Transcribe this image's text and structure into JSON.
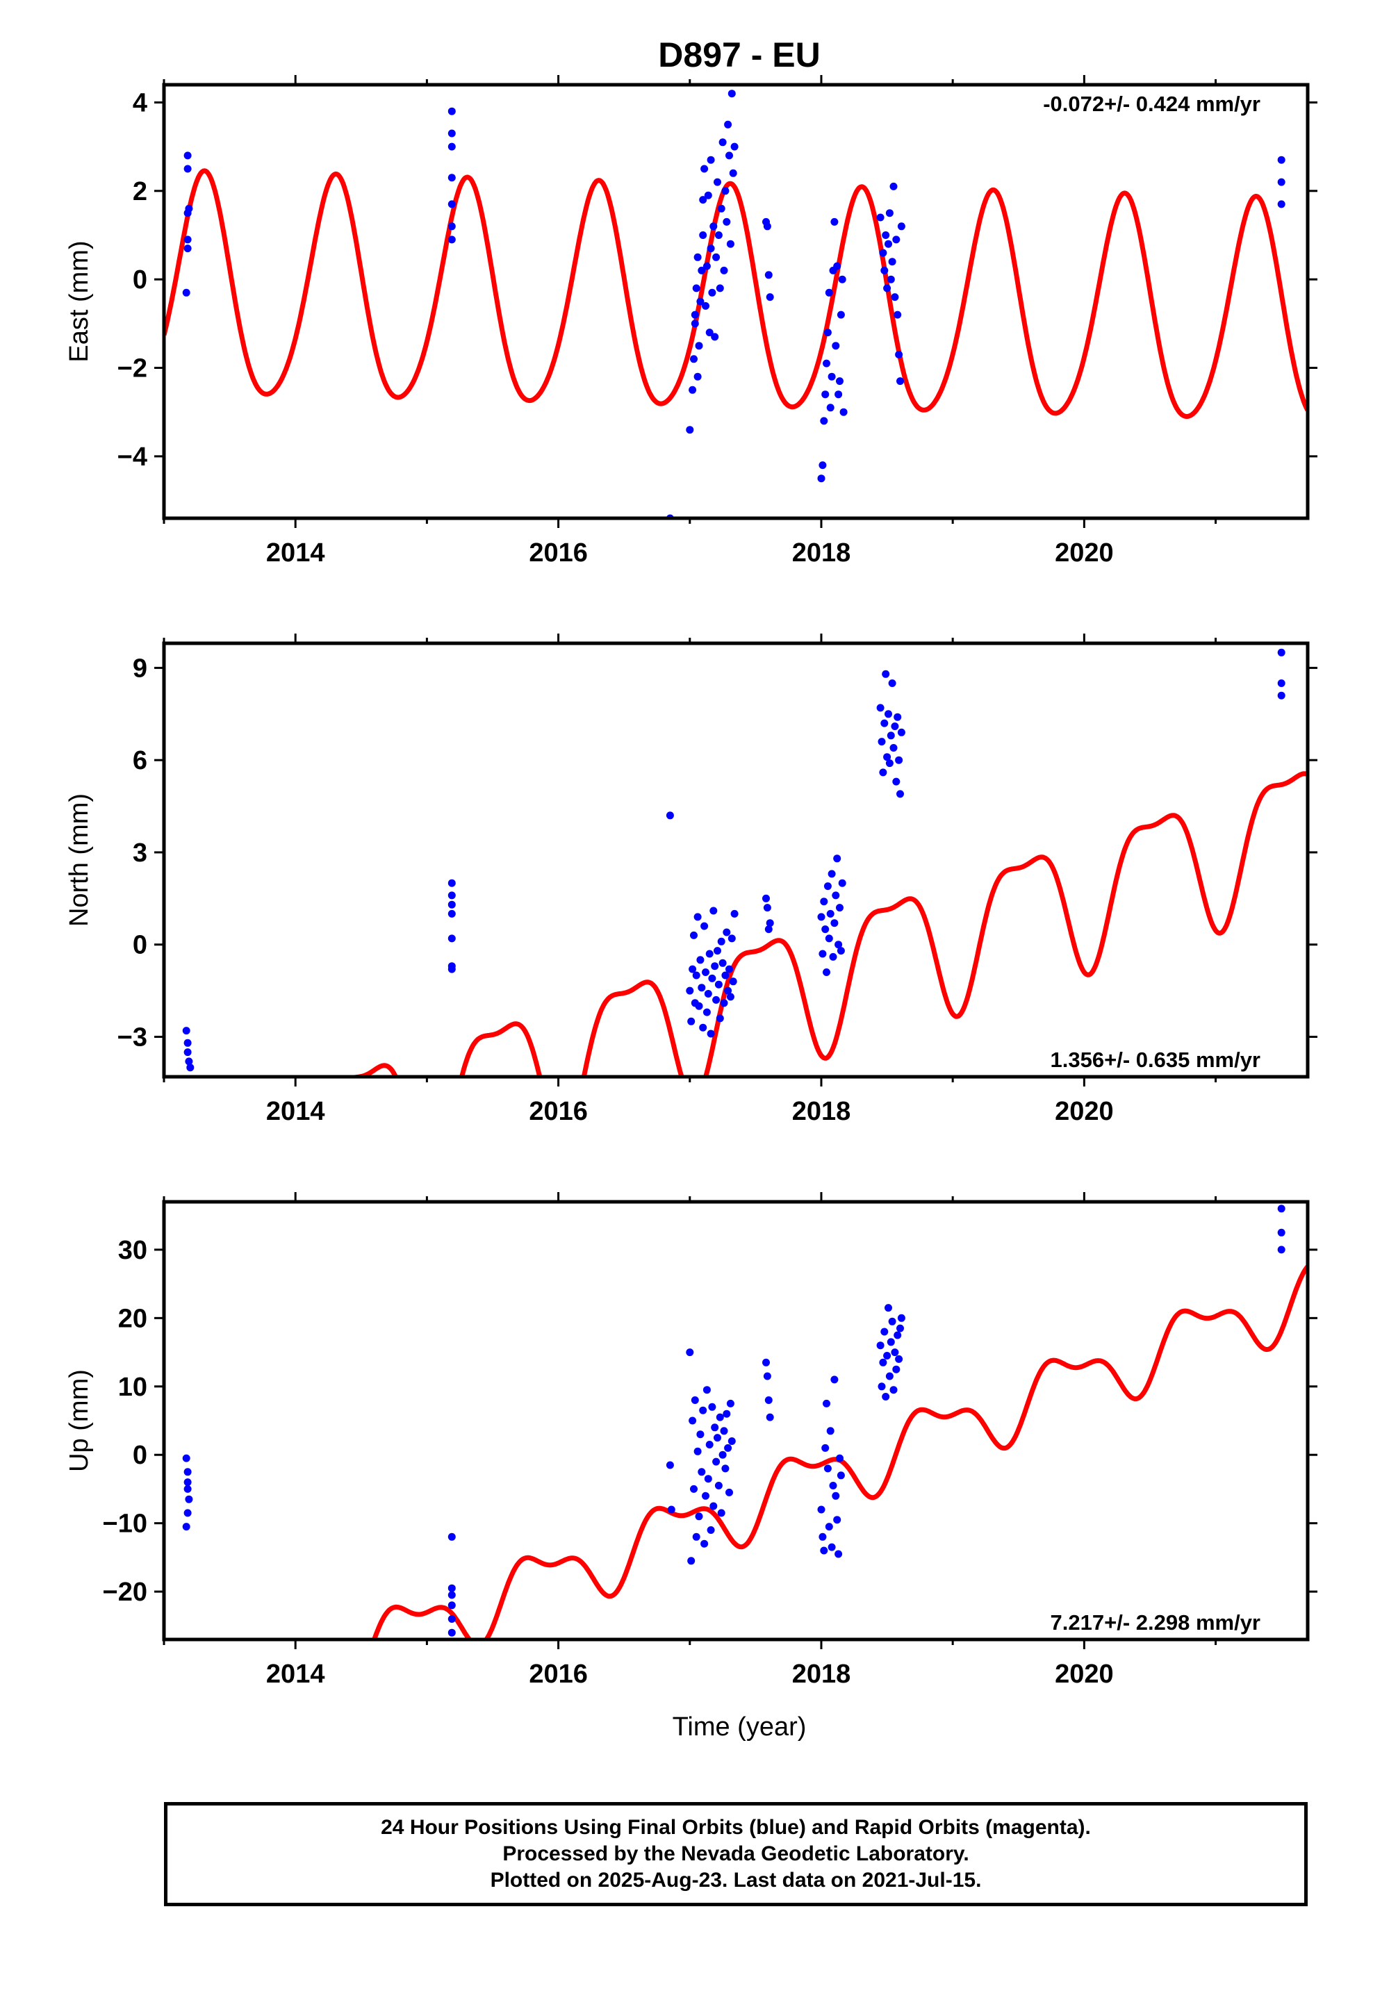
{
  "title": "D897 - EU",
  "xlabel": "Time (year)",
  "caption": [
    "24 Hour Positions Using Final Orbits (blue) and Rapid Orbits (magenta).",
    "Processed by the Nevada Geodetic Laboratory.",
    "Plotted on 2025-Aug-23. Last data on 2021-Jul-15."
  ],
  "colors": {
    "data_points": "#0000ff",
    "model_curve": "#ff0000",
    "frame": "#000000"
  },
  "chart_data": [
    {
      "type": "scatter",
      "ylabel": "East (mm)",
      "rate_label": "-0.072+/- 0.424 mm/yr",
      "rate_position": "top-right",
      "xlim": [
        2013.0,
        2021.7
      ],
      "ylim": [
        -5.4,
        4.4
      ],
      "xticks": [
        2014,
        2016,
        2018,
        2020
      ],
      "xtick_labels": [
        "2014",
        "2016",
        "2018",
        "2020"
      ],
      "yticks": [
        -4,
        -2,
        0,
        2,
        4
      ],
      "ytick_labels": [
        "−4",
        "−2",
        "0",
        "2",
        "4"
      ],
      "model": {
        "offset": -0.6,
        "rate": -0.072,
        "a1": 2.5,
        "phase1": 0.05,
        "a2": 0.3,
        "phase2": 0.2
      },
      "points": [
        [
          2013.18,
          2.8
        ],
        [
          2013.18,
          2.5
        ],
        [
          2013.18,
          1.5
        ],
        [
          2013.18,
          0.9
        ],
        [
          2013.18,
          0.7
        ],
        [
          2013.17,
          -0.3
        ],
        [
          2013.19,
          1.6
        ],
        [
          2015.19,
          3.8
        ],
        [
          2015.19,
          3.3
        ],
        [
          2015.19,
          3.0
        ],
        [
          2015.19,
          2.3
        ],
        [
          2015.19,
          1.7
        ],
        [
          2015.19,
          1.2
        ],
        [
          2015.19,
          0.9
        ],
        [
          2016.85,
          -5.4
        ],
        [
          2017.0,
          -3.4
        ],
        [
          2017.02,
          -2.5
        ],
        [
          2017.03,
          -1.8
        ],
        [
          2017.04,
          -1.0
        ],
        [
          2017.04,
          -0.8
        ],
        [
          2017.05,
          -0.2
        ],
        [
          2017.06,
          0.5
        ],
        [
          2017.06,
          -2.2
        ],
        [
          2017.07,
          -1.5
        ],
        [
          2017.08,
          -0.5
        ],
        [
          2017.09,
          0.2
        ],
        [
          2017.1,
          1.0
        ],
        [
          2017.1,
          1.8
        ],
        [
          2017.11,
          2.5
        ],
        [
          2017.12,
          -0.6
        ],
        [
          2017.13,
          0.3
        ],
        [
          2017.14,
          1.9
        ],
        [
          2017.15,
          -1.2
        ],
        [
          2017.16,
          0.7
        ],
        [
          2017.16,
          2.7
        ],
        [
          2017.17,
          -0.3
        ],
        [
          2017.18,
          1.2
        ],
        [
          2017.19,
          -1.3
        ],
        [
          2017.2,
          0.5
        ],
        [
          2017.21,
          2.2
        ],
        [
          2017.22,
          1.0
        ],
        [
          2017.23,
          -0.2
        ],
        [
          2017.24,
          1.6
        ],
        [
          2017.25,
          3.1
        ],
        [
          2017.26,
          0.2
        ],
        [
          2017.27,
          2.0
        ],
        [
          2017.28,
          1.3
        ],
        [
          2017.29,
          3.5
        ],
        [
          2017.3,
          2.8
        ],
        [
          2017.31,
          0.8
        ],
        [
          2017.32,
          4.2
        ],
        [
          2017.33,
          2.4
        ],
        [
          2017.34,
          3.0
        ],
        [
          2017.58,
          1.3
        ],
        [
          2017.59,
          1.2
        ],
        [
          2017.6,
          0.1
        ],
        [
          2017.61,
          -0.4
        ],
        [
          2018.0,
          -4.5
        ],
        [
          2018.01,
          -4.2
        ],
        [
          2018.02,
          -3.2
        ],
        [
          2018.03,
          -2.6
        ],
        [
          2018.04,
          -1.9
        ],
        [
          2018.05,
          -1.2
        ],
        [
          2018.06,
          -0.3
        ],
        [
          2018.07,
          -2.9
        ],
        [
          2018.08,
          -2.2
        ],
        [
          2018.09,
          0.2
        ],
        [
          2018.1,
          1.3
        ],
        [
          2018.11,
          -1.5
        ],
        [
          2018.12,
          0.3
        ],
        [
          2018.13,
          -2.6
        ],
        [
          2018.14,
          -2.3
        ],
        [
          2018.15,
          -0.8
        ],
        [
          2018.16,
          0.0
        ],
        [
          2018.17,
          -3.0
        ],
        [
          2018.45,
          1.4
        ],
        [
          2018.47,
          0.6
        ],
        [
          2018.48,
          0.2
        ],
        [
          2018.49,
          1.0
        ],
        [
          2018.5,
          -0.2
        ],
        [
          2018.51,
          0.8
        ],
        [
          2018.52,
          1.5
        ],
        [
          2018.53,
          0.0
        ],
        [
          2018.54,
          0.4
        ],
        [
          2018.55,
          2.1
        ],
        [
          2018.56,
          -0.4
        ],
        [
          2018.57,
          0.9
        ],
        [
          2018.58,
          -0.8
        ],
        [
          2018.59,
          -1.7
        ],
        [
          2018.6,
          -2.3
        ],
        [
          2018.61,
          1.2
        ],
        [
          2021.5,
          2.7
        ],
        [
          2021.5,
          2.2
        ],
        [
          2021.5,
          1.7
        ]
      ]
    },
    {
      "type": "scatter",
      "ylabel": "North (mm)",
      "rate_label": "1.356+/- 0.635 mm/yr",
      "rate_position": "bottom-right",
      "xlim": [
        2013.0,
        2021.7
      ],
      "ylim": [
        -4.3,
        9.8
      ],
      "xticks": [
        2014,
        2016,
        2018,
        2020
      ],
      "xtick_labels": [
        "2014",
        "2016",
        "2018",
        "2020"
      ],
      "yticks": [
        -3,
        0,
        3,
        6,
        9
      ],
      "ytick_labels": [
        "−3",
        "0",
        "3",
        "6",
        "9"
      ],
      "model": {
        "offset": -2.3,
        "rate": 1.356,
        "a1": 2.1,
        "phase1": 0.29,
        "a2": 0.7,
        "phase2": 0.16
      },
      "points": [
        [
          2013.17,
          -2.8
        ],
        [
          2013.18,
          -3.2
        ],
        [
          2013.18,
          -3.5
        ],
        [
          2013.19,
          -3.8
        ],
        [
          2013.2,
          -4.0
        ],
        [
          2015.19,
          2.0
        ],
        [
          2015.19,
          1.6
        ],
        [
          2015.19,
          1.3
        ],
        [
          2015.19,
          1.0
        ],
        [
          2015.19,
          0.2
        ],
        [
          2015.19,
          -0.7
        ],
        [
          2015.19,
          -0.8
        ],
        [
          2016.85,
          4.2
        ],
        [
          2017.0,
          -1.5
        ],
        [
          2017.01,
          -2.5
        ],
        [
          2017.02,
          -0.8
        ],
        [
          2017.03,
          0.3
        ],
        [
          2017.04,
          -1.9
        ],
        [
          2017.05,
          -1.0
        ],
        [
          2017.06,
          0.9
        ],
        [
          2017.07,
          -2.0
        ],
        [
          2017.08,
          -0.5
        ],
        [
          2017.09,
          -1.4
        ],
        [
          2017.1,
          -2.7
        ],
        [
          2017.11,
          0.6
        ],
        [
          2017.12,
          -0.9
        ],
        [
          2017.13,
          -2.2
        ],
        [
          2017.14,
          -1.6
        ],
        [
          2017.15,
          -0.3
        ],
        [
          2017.16,
          -2.9
        ],
        [
          2017.17,
          -1.1
        ],
        [
          2017.18,
          1.1
        ],
        [
          2017.19,
          -0.7
        ],
        [
          2017.2,
          -1.8
        ],
        [
          2017.21,
          -0.2
        ],
        [
          2017.22,
          -1.3
        ],
        [
          2017.23,
          -2.4
        ],
        [
          2017.24,
          0.1
        ],
        [
          2017.25,
          -0.6
        ],
        [
          2017.26,
          -1.9
        ],
        [
          2017.27,
          -1.0
        ],
        [
          2017.28,
          0.4
        ],
        [
          2017.29,
          -1.5
        ],
        [
          2017.3,
          -0.8
        ],
        [
          2017.31,
          -1.7
        ],
        [
          2017.32,
          0.2
        ],
        [
          2017.33,
          -1.2
        ],
        [
          2017.34,
          1.0
        ],
        [
          2017.58,
          1.5
        ],
        [
          2017.59,
          1.2
        ],
        [
          2017.6,
          0.5
        ],
        [
          2017.61,
          0.7
        ],
        [
          2018.0,
          0.9
        ],
        [
          2018.01,
          -0.3
        ],
        [
          2018.02,
          1.4
        ],
        [
          2018.03,
          0.5
        ],
        [
          2018.04,
          -0.9
        ],
        [
          2018.05,
          1.9
        ],
        [
          2018.06,
          0.2
        ],
        [
          2018.07,
          1.0
        ],
        [
          2018.08,
          2.3
        ],
        [
          2018.09,
          -0.4
        ],
        [
          2018.1,
          0.7
        ],
        [
          2018.11,
          1.6
        ],
        [
          2018.12,
          2.8
        ],
        [
          2018.13,
          0.0
        ],
        [
          2018.14,
          1.2
        ],
        [
          2018.15,
          -0.2
        ],
        [
          2018.16,
          2.0
        ],
        [
          2018.45,
          7.7
        ],
        [
          2018.46,
          6.6
        ],
        [
          2018.47,
          5.6
        ],
        [
          2018.48,
          7.2
        ],
        [
          2018.49,
          8.8
        ],
        [
          2018.5,
          6.1
        ],
        [
          2018.51,
          7.5
        ],
        [
          2018.52,
          5.9
        ],
        [
          2018.53,
          6.8
        ],
        [
          2018.54,
          8.5
        ],
        [
          2018.55,
          6.4
        ],
        [
          2018.56,
          7.1
        ],
        [
          2018.57,
          5.3
        ],
        [
          2018.58,
          7.4
        ],
        [
          2018.59,
          6.0
        ],
        [
          2018.6,
          4.9
        ],
        [
          2018.61,
          6.9
        ],
        [
          2021.5,
          9.5
        ],
        [
          2021.5,
          8.5
        ],
        [
          2021.5,
          8.1
        ]
      ]
    },
    {
      "type": "scatter",
      "ylabel": "Up (mm)",
      "rate_label": "7.217+/- 2.298 mm/yr",
      "rate_position": "bottom-right",
      "xlim": [
        2013.0,
        2021.7
      ],
      "ylim": [
        -27,
        37
      ],
      "xticks": [
        2014,
        2016,
        2018,
        2020
      ],
      "xtick_labels": [
        "2014",
        "2016",
        "2018",
        "2020"
      ],
      "yticks": [
        -20,
        -10,
        0,
        10,
        20,
        30
      ],
      "ytick_labels": [
        "−20",
        "−10",
        "0",
        "10",
        "20",
        "30"
      ],
      "model": {
        "offset": -10.3,
        "rate": 7.217,
        "a1": 4.2,
        "phase1": 0.62,
        "a2": 2.0,
        "phase2": 0.05
      },
      "points": [
        [
          2013.17,
          -0.5
        ],
        [
          2013.18,
          -2.5
        ],
        [
          2013.18,
          -4.0
        ],
        [
          2013.18,
          -5.0
        ],
        [
          2013.19,
          -6.5
        ],
        [
          2013.18,
          -8.5
        ],
        [
          2013.17,
          -10.5
        ],
        [
          2015.19,
          -12.0
        ],
        [
          2015.19,
          -19.5
        ],
        [
          2015.19,
          -20.5
        ],
        [
          2015.19,
          -22.0
        ],
        [
          2015.19,
          -24.0
        ],
        [
          2015.19,
          -26.0
        ],
        [
          2016.85,
          -1.5
        ],
        [
          2016.86,
          -8.0
        ],
        [
          2017.0,
          15.0
        ],
        [
          2017.01,
          -15.5
        ],
        [
          2017.02,
          5.0
        ],
        [
          2017.03,
          -5.0
        ],
        [
          2017.04,
          8.0
        ],
        [
          2017.05,
          -12.0
        ],
        [
          2017.06,
          0.5
        ],
        [
          2017.07,
          -9.0
        ],
        [
          2017.08,
          3.0
        ],
        [
          2017.09,
          -2.5
        ],
        [
          2017.1,
          6.5
        ],
        [
          2017.11,
          -13.0
        ],
        [
          2017.12,
          -6.0
        ],
        [
          2017.13,
          9.5
        ],
        [
          2017.14,
          -3.5
        ],
        [
          2017.15,
          1.5
        ],
        [
          2017.16,
          -11.0
        ],
        [
          2017.17,
          7.0
        ],
        [
          2017.18,
          -7.5
        ],
        [
          2017.19,
          4.0
        ],
        [
          2017.2,
          -1.0
        ],
        [
          2017.21,
          2.5
        ],
        [
          2017.22,
          -4.5
        ],
        [
          2017.23,
          5.5
        ],
        [
          2017.24,
          -8.5
        ],
        [
          2017.25,
          0.0
        ],
        [
          2017.26,
          3.5
        ],
        [
          2017.27,
          -2.0
        ],
        [
          2017.28,
          6.0
        ],
        [
          2017.29,
          1.0
        ],
        [
          2017.3,
          -5.5
        ],
        [
          2017.31,
          7.5
        ],
        [
          2017.32,
          2.0
        ],
        [
          2017.58,
          13.5
        ],
        [
          2017.59,
          11.5
        ],
        [
          2017.6,
          8.0
        ],
        [
          2017.61,
          5.5
        ],
        [
          2018.0,
          -8.0
        ],
        [
          2018.01,
          -12.0
        ],
        [
          2018.02,
          -14.0
        ],
        [
          2018.03,
          1.0
        ],
        [
          2018.04,
          7.5
        ],
        [
          2018.05,
          -2.0
        ],
        [
          2018.06,
          -10.5
        ],
        [
          2018.07,
          3.5
        ],
        [
          2018.08,
          -13.5
        ],
        [
          2018.09,
          -4.5
        ],
        [
          2018.1,
          11.0
        ],
        [
          2018.11,
          -6.0
        ],
        [
          2018.12,
          -9.5
        ],
        [
          2018.13,
          -14.5
        ],
        [
          2018.14,
          -0.5
        ],
        [
          2018.15,
          -3.0
        ],
        [
          2018.45,
          16.0
        ],
        [
          2018.46,
          10.0
        ],
        [
          2018.47,
          13.5
        ],
        [
          2018.48,
          18.0
        ],
        [
          2018.49,
          8.5
        ],
        [
          2018.5,
          14.5
        ],
        [
          2018.51,
          21.5
        ],
        [
          2018.52,
          11.5
        ],
        [
          2018.53,
          16.5
        ],
        [
          2018.54,
          19.5
        ],
        [
          2018.55,
          9.5
        ],
        [
          2018.56,
          15.0
        ],
        [
          2018.57,
          12.5
        ],
        [
          2018.58,
          17.5
        ],
        [
          2018.59,
          14.0
        ],
        [
          2018.6,
          18.5
        ],
        [
          2018.61,
          20.0
        ],
        [
          2021.5,
          36.0
        ],
        [
          2021.5,
          32.5
        ],
        [
          2021.5,
          30.0
        ]
      ]
    }
  ]
}
